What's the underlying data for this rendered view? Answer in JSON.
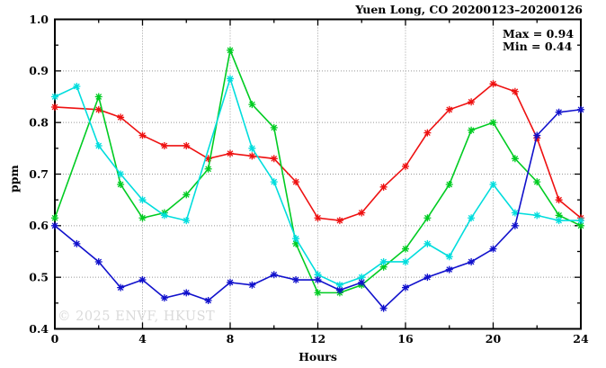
{
  "title": "Yuen Long, CO 20200123–20200126",
  "watermark": "© 2025 ENVF, HKUST",
  "annotation": {
    "max_label": "Max = 0.94",
    "min_label": "Min = 0.44"
  },
  "chart_data": {
    "type": "line",
    "title": "Yuen Long, CO 20200123–20200126",
    "xlabel": "Hours",
    "ylabel": "ppm",
    "xlim": [
      0,
      24
    ],
    "ylim": [
      0.4,
      1.0
    ],
    "x_major_ticks": [
      0,
      4,
      8,
      12,
      16,
      20,
      24
    ],
    "x_minor_step": 2,
    "y_major_step": 0.1,
    "y_minor_step": 0.05,
    "grid": "dotted gridlines at major ticks (x: 4,8,12,16,20; y: 0.5-0.9)",
    "legend_position": "none",
    "marker": "asterisk",
    "annotations": [
      "Max = 0.94",
      "Min = 0.44"
    ],
    "x": [
      0,
      1,
      2,
      3,
      4,
      5,
      6,
      7,
      8,
      9,
      10,
      11,
      12,
      13,
      14,
      15,
      16,
      17,
      18,
      19,
      20,
      21,
      22,
      23,
      24
    ],
    "series": [
      {
        "name": "red",
        "color": "#ee1111",
        "values": [
          0.83,
          null,
          0.825,
          0.81,
          0.775,
          0.755,
          0.755,
          0.73,
          0.74,
          0.735,
          0.73,
          0.685,
          0.615,
          0.61,
          0.625,
          0.675,
          0.715,
          0.78,
          0.825,
          0.84,
          0.875,
          0.86,
          0.77,
          0.65,
          0.615
        ]
      },
      {
        "name": "green",
        "color": "#00cc22",
        "values": [
          0.615,
          null,
          0.85,
          0.68,
          0.615,
          0.625,
          0.66,
          0.71,
          0.94,
          0.835,
          0.79,
          0.565,
          0.47,
          0.47,
          0.485,
          0.52,
          0.555,
          0.615,
          0.68,
          0.785,
          0.8,
          0.73,
          0.685,
          0.62,
          0.6
        ]
      },
      {
        "name": "cyan",
        "color": "#00dddd",
        "values": [
          0.85,
          0.87,
          0.755,
          0.7,
          0.65,
          0.62,
          0.61,
          null,
          0.885,
          0.75,
          0.685,
          0.575,
          0.505,
          0.485,
          0.5,
          0.53,
          0.53,
          0.565,
          0.54,
          0.615,
          0.68,
          0.625,
          0.62,
          0.61,
          0.61
        ]
      },
      {
        "name": "blue",
        "color": "#1111cc",
        "values": [
          0.6,
          0.565,
          0.53,
          0.48,
          0.495,
          0.46,
          0.47,
          0.455,
          0.49,
          0.485,
          0.505,
          0.495,
          0.495,
          0.475,
          0.49,
          0.44,
          0.48,
          0.5,
          0.515,
          0.53,
          0.555,
          0.6,
          0.775,
          0.82,
          0.825
        ]
      }
    ]
  }
}
